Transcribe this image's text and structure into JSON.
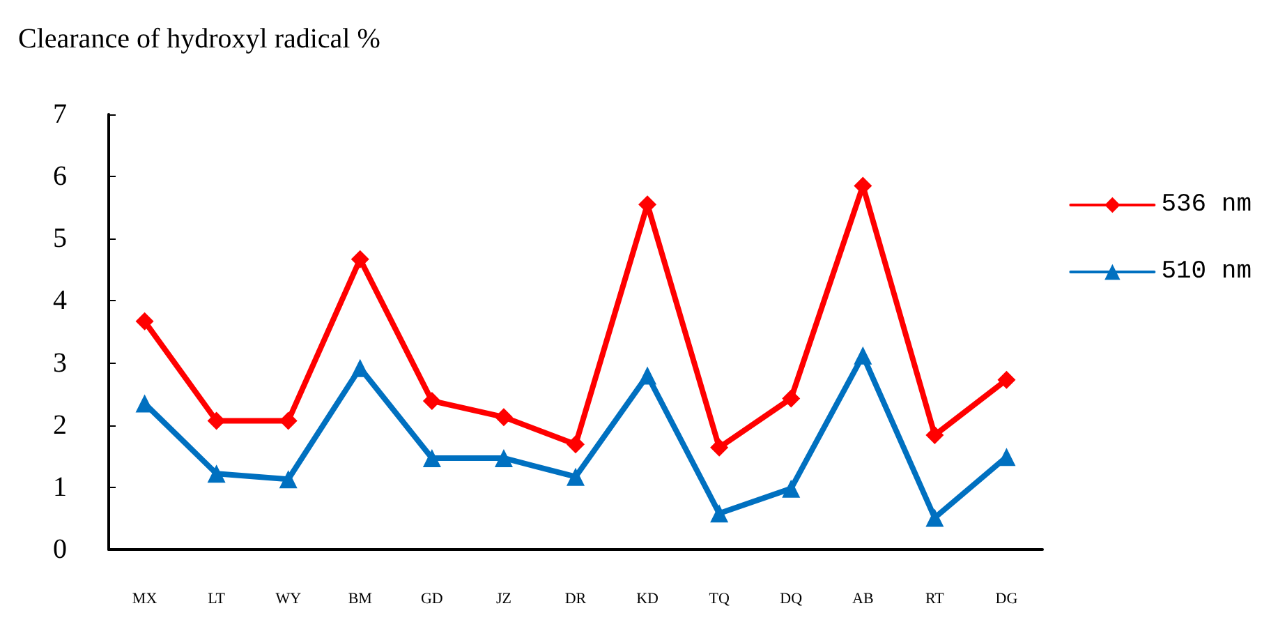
{
  "chart_data": {
    "type": "line",
    "title": "Clearance of hydroxyl radical %",
    "categories": [
      "MX",
      "LT",
      "WY",
      "BM",
      "GD",
      "JZ",
      "DR",
      "KD",
      "TQ",
      "DQ",
      "AB",
      "RT",
      "DG"
    ],
    "series": [
      {
        "name": "536 nm",
        "color": "#ff0000",
        "marker": "diamond",
        "values": [
          3.67,
          2.07,
          2.07,
          4.67,
          2.39,
          2.13,
          1.69,
          5.55,
          1.64,
          2.43,
          5.85,
          1.84,
          2.73
        ]
      },
      {
        "name": "510 nm",
        "color": "#0070c0",
        "marker": "triangle",
        "values": [
          2.35,
          1.22,
          1.13,
          2.92,
          1.47,
          1.47,
          1.17,
          2.8,
          0.58,
          0.98,
          3.12,
          0.51,
          1.49
        ]
      }
    ],
    "ylim": [
      0,
      7
    ],
    "yticks": [
      0,
      1,
      2,
      3,
      4,
      5,
      6,
      7
    ],
    "grid": false,
    "legend": "right",
    "line_style": "solid"
  }
}
